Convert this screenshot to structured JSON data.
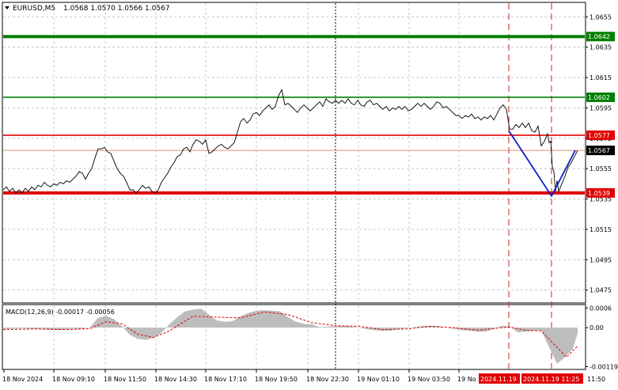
{
  "header": {
    "symbol_label": "EURUSD,M5",
    "ohlc_label": "1.0568 1.0570 1.0566 1.0567"
  },
  "macd": {
    "label": "MACD(12,26,9) -0.00017 -0.00056",
    "axis_ticks": [
      {
        "value": 0.0006,
        "label": "0.0006"
      },
      {
        "value": 0.0,
        "label": "0.00"
      },
      {
        "value": -0.00119,
        "label": "-0.00119"
      }
    ]
  },
  "colors": {
    "price_line": "#000000",
    "support_green": "#008000",
    "resistance_red": "#e00000",
    "current_price_line": "#e09070",
    "blue_path": "#1020c0",
    "macd_hist": "#bdbdbd",
    "macd_signal": "#e00000",
    "vertical_dash": "#d02020",
    "grid": "#c8c8c8"
  },
  "chart_data": {
    "type": "line",
    "symbol": "EURUSD",
    "timeframe": "M5",
    "ylim": [
      1.0467,
      1.0664
    ],
    "y_ticks": [
      1.0655,
      1.0635,
      1.0615,
      1.0595,
      1.0575,
      1.0555,
      1.0535,
      1.0515,
      1.0495,
      1.0475
    ],
    "x_tick_labels": [
      "18 Nov 2024",
      "18 Nov 09:10",
      "18 Nov 11:50",
      "18 Nov 14:30",
      "18 Nov 17:10",
      "18 Nov 19:50",
      "18 Nov 22:30",
      "19 Nov 01:10",
      "19 Nov 03:50",
      "19 No"
    ],
    "x_highlight_labels": [
      "2024.11.19",
      "2024.11.19 11:25"
    ],
    "x_end_label": "11:50",
    "levels": [
      {
        "price": 1.0642,
        "label": "1.0642",
        "color": "#008000",
        "style": "thick"
      },
      {
        "price": 1.0602,
        "label": "1.0602",
        "color": "#008000",
        "style": "normal"
      },
      {
        "price": 1.0577,
        "label": "1.0577",
        "color": "#e00000",
        "style": "normal"
      },
      {
        "price": 1.0539,
        "label": "1.0539",
        "color": "#e00000",
        "style": "thick"
      }
    ],
    "current_price": {
      "price": 1.0567,
      "label": "1.0567"
    },
    "price_series": [
      [
        0,
        1.0541
      ],
      [
        4,
        1.0543
      ],
      [
        8,
        1.054
      ],
      [
        12,
        1.0542
      ],
      [
        16,
        1.0539
      ],
      [
        20,
        1.0541
      ],
      [
        24,
        1.0539
      ],
      [
        28,
        1.0542
      ],
      [
        32,
        1.054
      ],
      [
        36,
        1.0543
      ],
      [
        40,
        1.0541
      ],
      [
        44,
        1.0544
      ],
      [
        48,
        1.0543
      ],
      [
        52,
        1.0546
      ],
      [
        56,
        1.0544
      ],
      [
        60,
        1.0543
      ],
      [
        64,
        1.0545
      ],
      [
        68,
        1.0544
      ],
      [
        72,
        1.0546
      ],
      [
        76,
        1.0545
      ],
      [
        80,
        1.0547
      ],
      [
        84,
        1.0546
      ],
      [
        88,
        1.0548
      ],
      [
        92,
        1.055
      ],
      [
        96,
        1.0553
      ],
      [
        100,
        1.0552
      ],
      [
        104,
        1.0548
      ],
      [
        108,
        1.0552
      ],
      [
        112,
        1.0555
      ],
      [
        116,
        1.0562
      ],
      [
        120,
        1.0568
      ],
      [
        124,
        1.0568
      ],
      [
        128,
        1.0569
      ],
      [
        132,
        1.0566
      ],
      [
        136,
        1.0565
      ],
      [
        140,
        1.056
      ],
      [
        144,
        1.0555
      ],
      [
        148,
        1.0552
      ],
      [
        152,
        1.055
      ],
      [
        156,
        1.0546
      ],
      [
        160,
        1.0541
      ],
      [
        164,
        1.0541
      ],
      [
        168,
        1.0539
      ],
      [
        172,
        1.0541
      ],
      [
        176,
        1.0544
      ],
      [
        180,
        1.0542
      ],
      [
        184,
        1.0543
      ],
      [
        188,
        1.054
      ],
      [
        192,
        1.0539
      ],
      [
        196,
        1.0541
      ],
      [
        200,
        1.0546
      ],
      [
        204,
        1.0549
      ],
      [
        208,
        1.0552
      ],
      [
        212,
        1.0556
      ],
      [
        216,
        1.0559
      ],
      [
        220,
        1.0563
      ],
      [
        224,
        1.0564
      ],
      [
        228,
        1.0568
      ],
      [
        232,
        1.0569
      ],
      [
        236,
        1.0566
      ],
      [
        240,
        1.0571
      ],
      [
        244,
        1.0574
      ],
      [
        248,
        1.0573
      ],
      [
        252,
        1.0571
      ],
      [
        256,
        1.0574
      ],
      [
        260,
        1.0565
      ],
      [
        264,
        1.0566
      ],
      [
        268,
        1.0568
      ],
      [
        272,
        1.057
      ],
      [
        276,
        1.0571
      ],
      [
        280,
        1.0569
      ],
      [
        284,
        1.0568
      ],
      [
        288,
        1.057
      ],
      [
        292,
        1.0572
      ],
      [
        296,
        1.0579
      ],
      [
        300,
        1.0586
      ],
      [
        304,
        1.0588
      ],
      [
        308,
        1.0585
      ],
      [
        312,
        1.0587
      ],
      [
        316,
        1.0591
      ],
      [
        320,
        1.0592
      ],
      [
        324,
        1.059
      ],
      [
        328,
        1.0593
      ],
      [
        332,
        1.0595
      ],
      [
        336,
        1.0597
      ],
      [
        340,
        1.0594
      ],
      [
        344,
        1.0596
      ],
      [
        348,
        1.0603
      ],
      [
        352,
        1.0607
      ],
      [
        356,
        1.0597
      ],
      [
        360,
        1.0598
      ],
      [
        364,
        1.0596
      ],
      [
        368,
        1.0594
      ],
      [
        372,
        1.0592
      ],
      [
        376,
        1.0595
      ],
      [
        380,
        1.0597
      ],
      [
        384,
        1.0595
      ],
      [
        388,
        1.0593
      ],
      [
        392,
        1.0595
      ],
      [
        396,
        1.0597
      ],
      [
        400,
        1.0599
      ],
      [
        404,
        1.0596
      ],
      [
        408,
        1.0601
      ],
      [
        412,
        1.0599
      ],
      [
        416,
        1.0598
      ],
      [
        420,
        1.06
      ],
      [
        424,
        1.0598
      ],
      [
        428,
        1.06
      ],
      [
        432,
        1.0598
      ],
      [
        436,
        1.0601
      ],
      [
        440,
        1.0598
      ],
      [
        444,
        1.0597
      ],
      [
        448,
        1.06
      ],
      [
        452,
        1.0597
      ],
      [
        456,
        1.0596
      ],
      [
        460,
        1.0599
      ],
      [
        464,
        1.06
      ],
      [
        468,
        1.0597
      ],
      [
        472,
        1.0598
      ],
      [
        476,
        1.0596
      ],
      [
        480,
        1.0594
      ],
      [
        484,
        1.0596
      ],
      [
        488,
        1.0593
      ],
      [
        492,
        1.0595
      ],
      [
        496,
        1.0594
      ],
      [
        500,
        1.0596
      ],
      [
        504,
        1.0594
      ],
      [
        508,
        1.0596
      ],
      [
        512,
        1.0593
      ],
      [
        516,
        1.0594
      ],
      [
        520,
        1.0596
      ],
      [
        524,
        1.0598
      ],
      [
        528,
        1.0596
      ],
      [
        532,
        1.0598
      ],
      [
        536,
        1.0596
      ],
      [
        540,
        1.0594
      ],
      [
        544,
        1.0596
      ],
      [
        548,
        1.0599
      ],
      [
        552,
        1.0598
      ],
      [
        556,
        1.0595
      ],
      [
        560,
        1.0596
      ],
      [
        564,
        1.0594
      ],
      [
        568,
        1.0592
      ],
      [
        572,
        1.059
      ],
      [
        576,
        1.059
      ],
      [
        580,
        1.0588
      ],
      [
        584,
        1.059
      ],
      [
        588,
        1.0589
      ],
      [
        592,
        1.0591
      ],
      [
        596,
        1.0588
      ],
      [
        600,
        1.0589
      ],
      [
        604,
        1.0587
      ],
      [
        608,
        1.0589
      ],
      [
        612,
        1.0588
      ],
      [
        616,
        1.059
      ],
      [
        620,
        1.0587
      ],
      [
        624,
        1.0591
      ],
      [
        628,
        1.0595
      ],
      [
        632,
        1.0597
      ],
      [
        636,
        1.0594
      ],
      [
        640,
        1.0581
      ],
      [
        644,
        1.0581
      ],
      [
        648,
        1.0584
      ],
      [
        652,
        1.0582
      ],
      [
        656,
        1.0585
      ],
      [
        660,
        1.0582
      ],
      [
        664,
        1.0585
      ],
      [
        668,
        1.058
      ],
      [
        672,
        1.0579
      ],
      [
        676,
        1.0583
      ],
      [
        680,
        1.057
      ],
      [
        684,
        1.0573
      ],
      [
        688,
        1.0578
      ],
      [
        690,
        1.0572
      ],
      [
        692,
        1.0573
      ],
      [
        694,
        1.0556
      ],
      [
        696,
        1.0553
      ],
      [
        698,
        1.054
      ],
      [
        700,
        1.0547
      ],
      [
        702,
        1.054
      ],
      [
        706,
        1.0545
      ],
      [
        710,
        1.055
      ],
      [
        714,
        1.0556
      ],
      [
        718,
        1.0559
      ],
      [
        722,
        1.0563
      ],
      [
        726,
        1.0567
      ]
    ],
    "annotation_path": [
      [
        643,
        1.058
      ],
      [
        697,
        1.0537
      ],
      [
        727,
        1.0567
      ]
    ],
    "macd_histogram": [
      [
        0,
        -5e-05
      ],
      [
        10,
        -4e-05
      ],
      [
        20,
        -3e-05
      ],
      [
        30,
        -3e-05
      ],
      [
        40,
        -4e-05
      ],
      [
        50,
        -4e-05
      ],
      [
        60,
        -6e-05
      ],
      [
        70,
        -8e-05
      ],
      [
        80,
        -5e-05
      ],
      [
        90,
        -4e-05
      ],
      [
        100,
        -4e-05
      ],
      [
        110,
        2e-05
      ],
      [
        120,
        0.0003
      ],
      [
        130,
        0.00036
      ],
      [
        140,
        0.00026
      ],
      [
        150,
        5e-05
      ],
      [
        160,
        -0.00022
      ],
      [
        170,
        -0.00034
      ],
      [
        180,
        -0.00037
      ],
      [
        190,
        -0.00032
      ],
      [
        200,
        -0.00016
      ],
      [
        210,
        0.0001
      ],
      [
        220,
        0.00032
      ],
      [
        230,
        0.0005
      ],
      [
        240,
        0.00055
      ],
      [
        250,
        0.00058
      ],
      [
        260,
        0.0004
      ],
      [
        270,
        0.00022
      ],
      [
        280,
        0.00018
      ],
      [
        290,
        0.0002
      ],
      [
        300,
        0.00035
      ],
      [
        310,
        0.00045
      ],
      [
        320,
        0.00052
      ],
      [
        330,
        0.00053
      ],
      [
        340,
        0.00052
      ],
      [
        350,
        0.0005
      ],
      [
        360,
        0.00032
      ],
      [
        370,
        0.00018
      ],
      [
        380,
        0.00012
      ],
      [
        390,
        0.0001
      ],
      [
        400,
        2e-05
      ],
      [
        410,
        3e-05
      ],
      [
        420,
        5e-05
      ],
      [
        430,
        6e-05
      ],
      [
        440,
        4e-05
      ],
      [
        450,
        0.0
      ],
      [
        460,
        -5e-05
      ],
      [
        470,
        -8e-05
      ],
      [
        480,
        -0.0001
      ],
      [
        490,
        -9e-05
      ],
      [
        500,
        -4e-05
      ],
      [
        510,
        -2e-05
      ],
      [
        520,
        2e-05
      ],
      [
        530,
        5e-05
      ],
      [
        540,
        6e-05
      ],
      [
        550,
        5e-05
      ],
      [
        560,
        0.0
      ],
      [
        570,
        -4e-05
      ],
      [
        580,
        -8e-05
      ],
      [
        590,
        -0.0001
      ],
      [
        600,
        -0.00012
      ],
      [
        610,
        -0.00012
      ],
      [
        620,
        -4e-05
      ],
      [
        630,
        6e-05
      ],
      [
        640,
        4e-05
      ],
      [
        650,
        -0.00014
      ],
      [
        660,
        -0.00012
      ],
      [
        670,
        -0.0001
      ],
      [
        680,
        -8e-05
      ],
      [
        690,
        -0.0006
      ],
      [
        700,
        -0.0011
      ],
      [
        710,
        -0.0009
      ],
      [
        720,
        -0.00065
      ],
      [
        726,
        -0.00017
      ]
    ],
    "macd_signal": [
      [
        0,
        -6e-05
      ],
      [
        40,
        -4e-05
      ],
      [
        80,
        -6e-05
      ],
      [
        110,
        -3e-05
      ],
      [
        130,
        0.00018
      ],
      [
        150,
        0.00012
      ],
      [
        170,
        -0.0002
      ],
      [
        190,
        -0.0003
      ],
      [
        210,
        -0.0001
      ],
      [
        240,
        0.00035
      ],
      [
        270,
        0.00032
      ],
      [
        300,
        0.0003
      ],
      [
        330,
        0.00048
      ],
      [
        360,
        0.0004
      ],
      [
        390,
        0.00015
      ],
      [
        420,
        6e-05
      ],
      [
        450,
        4e-05
      ],
      [
        480,
        -6e-05
      ],
      [
        510,
        -4e-05
      ],
      [
        540,
        4e-05
      ],
      [
        570,
        0.0
      ],
      [
        600,
        -8e-05
      ],
      [
        630,
        0.0
      ],
      [
        640,
        2e-05
      ],
      [
        660,
        -8e-05
      ],
      [
        680,
        -0.0001
      ],
      [
        700,
        -0.0006
      ],
      [
        712,
        -0.0009
      ],
      [
        726,
        -0.00056
      ]
    ]
  }
}
